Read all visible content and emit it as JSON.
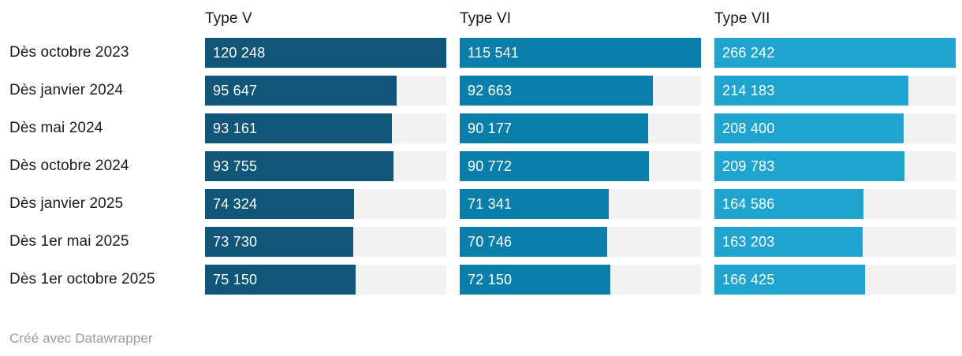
{
  "header": {
    "columns": [
      "Type V",
      "Type VI",
      "Type VII"
    ]
  },
  "footer": {
    "text": "Créé avec Datawrapper"
  },
  "chart_data": {
    "type": "bar",
    "orientation": "horizontal",
    "title": "",
    "categories": [
      "Dès octobre 2023",
      "Dès janvier 2024",
      "Dès mai 2024",
      "Dès octobre 2024",
      "Dès janvier 2025",
      "Dès 1er mai 2025",
      "Dès 1er octobre 2025"
    ],
    "series": [
      {
        "name": "Type V",
        "color": "#0f5679",
        "values": [
          120248,
          95647,
          93161,
          93755,
          74324,
          73730,
          75150
        ],
        "labels": [
          "120 248",
          "95 647",
          "93 161",
          "93 755",
          "74 324",
          "73 730",
          "75 150"
        ]
      },
      {
        "name": "Type VI",
        "color": "#0a7eab",
        "values": [
          115541,
          92663,
          90177,
          90772,
          71341,
          70746,
          72150
        ],
        "labels": [
          "115 541",
          "92 663",
          "90 177",
          "90 772",
          "71 341",
          "70 746",
          "72 150"
        ]
      },
      {
        "name": "Type VII",
        "color": "#1ea4cf",
        "values": [
          266242,
          214183,
          208400,
          209783,
          164586,
          163203,
          166425
        ],
        "labels": [
          "266 242",
          "214 183",
          "208 400",
          "209 783",
          "164 586",
          "163 203",
          "166 425"
        ]
      }
    ],
    "value_label_color": "#ffffff",
    "track_color": "#f2f2f2",
    "label_color": "#1b1b1b",
    "header_color": "#1a1a1a",
    "footer_color": "#9a9a9a",
    "scaling": "each_column_scaled_to_its_own_max",
    "legend_position": "column-headers",
    "grid": false,
    "footer": "Créé avec Datawrapper"
  }
}
